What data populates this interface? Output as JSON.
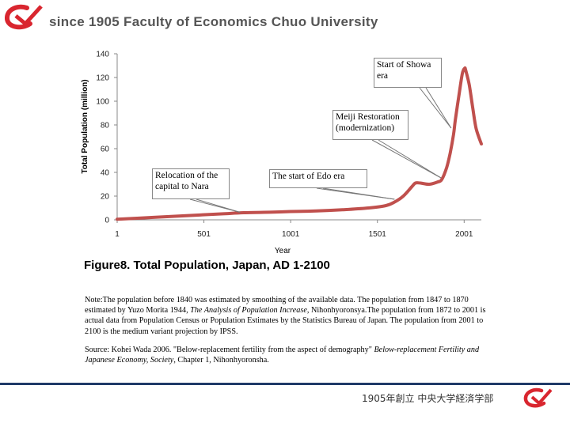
{
  "header": {
    "title": "since 1905 Faculty of Economics Chuo University"
  },
  "colors": {
    "brand_red": "#d9262f",
    "line": "#c0504d",
    "footer_blue": "#1f3a68",
    "header_gray": "#555555"
  },
  "chart_data": {
    "type": "line",
    "title": "",
    "xlabel": "Year",
    "ylabel": "Total Population (million)",
    "xlim": [
      1,
      2100
    ],
    "ylim": [
      0,
      140
    ],
    "x_ticks": [
      "1",
      "501",
      "1001",
      "1501",
      "2001"
    ],
    "y_ticks": [
      "0",
      "20",
      "40",
      "60",
      "80",
      "100",
      "120",
      "140"
    ],
    "grid": false,
    "series": [
      {
        "name": "Total Population",
        "x": [
          1,
          200,
          400,
          600,
          730,
          900,
          1000,
          1150,
          1300,
          1450,
          1550,
          1600,
          1650,
          1700,
          1720,
          1750,
          1800,
          1850,
          1872,
          1900,
          1920,
          1940,
          1950,
          1970,
          1990,
          2004,
          2010,
          2030,
          2050,
          2070,
          2100
        ],
        "y": [
          0.5,
          2,
          3.5,
          5,
          6,
          6.5,
          7,
          7.5,
          8.5,
          10,
          12,
          15,
          20,
          28,
          31,
          31,
          30,
          32,
          34,
          44,
          56,
          72,
          84,
          104,
          123,
          127.8,
          126,
          114,
          95,
          77,
          64
        ]
      }
    ],
    "annotations": [
      {
        "text": "Relocation of the capital to Nara",
        "x": 710,
        "y": 5
      },
      {
        "text": "The start of Edo era",
        "x": 1600,
        "y": 16
      },
      {
        "text": "Meiji Restoration (modernization)",
        "x": 1868,
        "y": 34
      },
      {
        "text": "Start of Showa era",
        "x": 1926,
        "y": 76
      }
    ]
  },
  "figure_caption": "Figure8. Total Population,  Japan,  AD 1-2100",
  "note": {
    "prefix": "Note:",
    "part1": "The population before 1840 was estimated by smoothing of the available data. The population from 1847 to 1870 estimated by Yuzo Morita 1944, ",
    "italic": "The Analysis of Population Increase",
    "part2": ", Nihonhyoronsya.The population from 1872 to 2001 is actual data from Population Census or Population Estimates by the Statistics Bureau of Japan. The population from 2001 to 2100 is the medium variant projection by IPSS."
  },
  "source": {
    "part1": "Source: Kohei Wada 2006. \"Below-replacement fertility from the aspect of demography\" ",
    "italic": "Below-replacement Fertility and Japanese Economy, Society",
    "part2": ", Chapter 1, Nihonhyoronsha."
  },
  "footer": {
    "text": "1905年創立 中央大学経済学部"
  }
}
